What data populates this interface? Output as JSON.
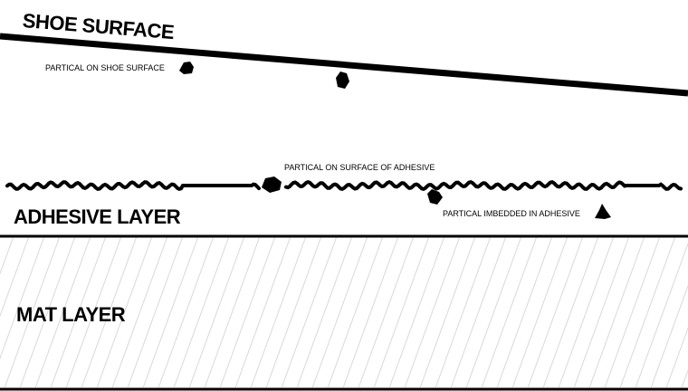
{
  "labels": {
    "shoe_surface": "SHOE SURFACE",
    "partical_on_shoe": "PARTICAL ON SHOE SURFACE",
    "partical_on_adhesive": "PARTICAL ON SURFACE OF ADHESIVE",
    "adhesive_layer": "ADHESIVE LAYER",
    "partical_imbedded": "PARTICAL IMBEDDED IN ADHESIVE",
    "mat_layer": "MAT LAYER"
  },
  "colors": {
    "line": "#000000",
    "hatch": "#d6d6d6",
    "background": "#ffffff"
  }
}
